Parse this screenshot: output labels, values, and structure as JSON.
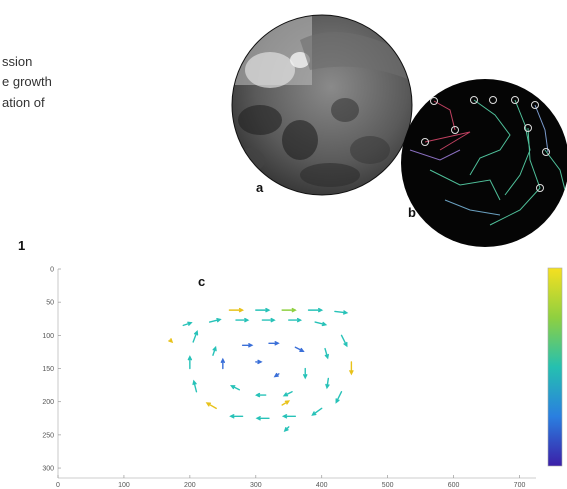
{
  "text_lines": [
    "ssion",
    "e growth",
    "ation of"
  ],
  "figure_number": "1",
  "panel_a": {
    "label": "a"
  },
  "panel_b": {
    "label": "b"
  },
  "panel_c": {
    "label": "c",
    "type": "quiver",
    "xlim": [
      0,
      725
    ],
    "ylim": [
      0,
      315
    ],
    "y_reversed": true,
    "xticks": [
      0,
      100,
      200,
      300,
      400,
      500,
      600,
      700
    ],
    "yticks": [
      0,
      50,
      100,
      150,
      200,
      250,
      300
    ],
    "colorbar": [
      "#3b1fa8",
      "#2a7fe0",
      "#25c0b0",
      "#8fd040",
      "#f5e020"
    ],
    "vectors": [
      {
        "x": 260,
        "y": 62,
        "u": 20,
        "v": 0,
        "color": "#e8c21a"
      },
      {
        "x": 300,
        "y": 62,
        "u": 20,
        "v": 0,
        "color": "#27c2b8"
      },
      {
        "x": 340,
        "y": 62,
        "u": 20,
        "v": 0,
        "color": "#8fd040"
      },
      {
        "x": 380,
        "y": 62,
        "u": 20,
        "v": 0,
        "color": "#27c2b8"
      },
      {
        "x": 420,
        "y": 64,
        "u": 18,
        "v": 2,
        "color": "#27c2b8"
      },
      {
        "x": 230,
        "y": 80,
        "u": 16,
        "v": -4,
        "color": "#27c2b8"
      },
      {
        "x": 270,
        "y": 77,
        "u": 18,
        "v": 0,
        "color": "#27c2b8"
      },
      {
        "x": 310,
        "y": 77,
        "u": 18,
        "v": 0,
        "color": "#27c2b8"
      },
      {
        "x": 350,
        "y": 77,
        "u": 18,
        "v": 0,
        "color": "#27c2b8"
      },
      {
        "x": 390,
        "y": 80,
        "u": 16,
        "v": 4,
        "color": "#27c2b8"
      },
      {
        "x": 430,
        "y": 100,
        "u": 8,
        "v": 16,
        "color": "#27c2b8"
      },
      {
        "x": 445,
        "y": 140,
        "u": 0,
        "v": 18,
        "color": "#e8c21a"
      },
      {
        "x": 430,
        "y": 185,
        "u": -8,
        "v": 16,
        "color": "#27c2b8"
      },
      {
        "x": 400,
        "y": 210,
        "u": -14,
        "v": 10,
        "color": "#27c2b8"
      },
      {
        "x": 360,
        "y": 222,
        "u": -18,
        "v": 0,
        "color": "#27c2b8"
      },
      {
        "x": 320,
        "y": 225,
        "u": -18,
        "v": 0,
        "color": "#27c2b8"
      },
      {
        "x": 280,
        "y": 222,
        "u": -18,
        "v": 0,
        "color": "#27c2b8"
      },
      {
        "x": 240,
        "y": 210,
        "u": -14,
        "v": -8,
        "color": "#e8c21a"
      },
      {
        "x": 210,
        "y": 185,
        "u": -4,
        "v": -16,
        "color": "#27c2b8"
      },
      {
        "x": 200,
        "y": 150,
        "u": 0,
        "v": -18,
        "color": "#27c2b8"
      },
      {
        "x": 205,
        "y": 110,
        "u": 6,
        "v": -16,
        "color": "#27c2b8"
      },
      {
        "x": 190,
        "y": 85,
        "u": 12,
        "v": -4,
        "color": "#27c2b8"
      },
      {
        "x": 280,
        "y": 115,
        "u": 14,
        "v": 0,
        "color": "#3a6fd8"
      },
      {
        "x": 320,
        "y": 112,
        "u": 14,
        "v": 0,
        "color": "#3a6fd8"
      },
      {
        "x": 360,
        "y": 118,
        "u": 12,
        "v": 6,
        "color": "#3a6fd8"
      },
      {
        "x": 375,
        "y": 150,
        "u": 0,
        "v": 14,
        "color": "#27c2b8"
      },
      {
        "x": 355,
        "y": 185,
        "u": -12,
        "v": 6,
        "color": "#27c2b8"
      },
      {
        "x": 315,
        "y": 190,
        "u": -14,
        "v": 0,
        "color": "#27c2b8"
      },
      {
        "x": 275,
        "y": 182,
        "u": -12,
        "v": -6,
        "color": "#27c2b8"
      },
      {
        "x": 250,
        "y": 150,
        "u": 0,
        "v": -14,
        "color": "#3a6fd8"
      },
      {
        "x": 300,
        "y": 140,
        "u": 8,
        "v": 0,
        "color": "#3a6fd8"
      },
      {
        "x": 335,
        "y": 158,
        "u": -6,
        "v": 4,
        "color": "#3a6fd8"
      },
      {
        "x": 405,
        "y": 120,
        "u": 4,
        "v": 14,
        "color": "#27c2b8"
      },
      {
        "x": 410,
        "y": 165,
        "u": -2,
        "v": 14,
        "color": "#27c2b8"
      },
      {
        "x": 340,
        "y": 205,
        "u": 10,
        "v": -6,
        "color": "#e8c21a"
      },
      {
        "x": 170,
        "y": 107,
        "u": 3,
        "v": 3,
        "color": "#e8c21a"
      },
      {
        "x": 235,
        "y": 130,
        "u": 4,
        "v": -12,
        "color": "#27c2b8"
      },
      {
        "x": 350,
        "y": 238,
        "u": -6,
        "v": 6,
        "color": "#27c2b8"
      }
    ]
  }
}
